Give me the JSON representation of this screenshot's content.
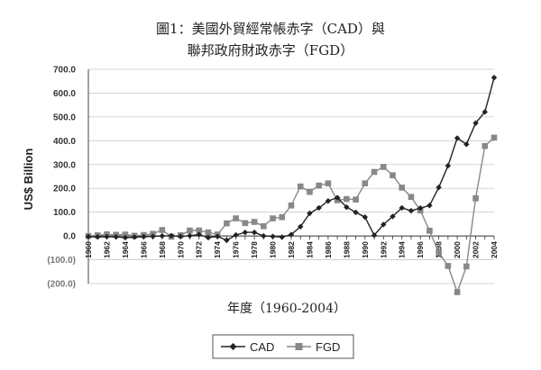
{
  "chart_data": {
    "type": "line",
    "title_line1": "圖1：美國外貿經常帳赤字（CAD）與",
    "title_line2": "聯邦政府財政赤字（FGD）",
    "xlabel": "年度（1960-2004）",
    "ylabel": "US$ Billion",
    "ylim": [
      -200,
      700
    ],
    "ytick_labels": [
      "700.0",
      "600.0",
      "500.0",
      "400.0",
      "300.0",
      "200.0",
      "100.0",
      "0.0",
      "(100.0)",
      "(200.0)"
    ],
    "ytick_values": [
      700,
      600,
      500,
      400,
      300,
      200,
      100,
      0,
      -100,
      -200
    ],
    "xtick_labels": [
      "1960",
      "1962",
      "1964",
      "1966",
      "1968",
      "1970",
      "1972",
      "1974",
      "1976",
      "1978",
      "1980",
      "1982",
      "1984",
      "1986",
      "1988",
      "1990",
      "1992",
      "1994",
      "1996",
      "1998",
      "2000",
      "2002",
      "2004"
    ],
    "x": [
      1960,
      1961,
      1962,
      1963,
      1964,
      1965,
      1966,
      1967,
      1968,
      1969,
      1970,
      1971,
      1972,
      1973,
      1974,
      1975,
      1976,
      1977,
      1978,
      1979,
      1980,
      1981,
      1982,
      1983,
      1984,
      1985,
      1986,
      1987,
      1988,
      1989,
      1990,
      1991,
      1992,
      1993,
      1994,
      1995,
      1996,
      1997,
      1998,
      1999,
      2000,
      2001,
      2002,
      2003,
      2004
    ],
    "grid": true,
    "legend_position": "bottom",
    "series": [
      {
        "name": "CAD",
        "color": "#222222",
        "marker": "diamond",
        "values": [
          -3,
          -4,
          -3,
          -4,
          -7,
          -5,
          -3,
          -2,
          0,
          1,
          -2,
          1,
          6,
          -7,
          -2,
          -18,
          4,
          15,
          15,
          0,
          -2,
          -5,
          6,
          39,
          95,
          118,
          147,
          161,
          121,
          99,
          79,
          3,
          48,
          82,
          118,
          106,
          117,
          128,
          204,
          295,
          411,
          385,
          474,
          521,
          665
        ]
      },
      {
        "name": "FGD",
        "color": "#888888",
        "marker": "square",
        "values": [
          0,
          3,
          7,
          5,
          6,
          1,
          4,
          9,
          25,
          -3,
          3,
          23,
          23,
          15,
          6,
          53,
          74,
          54,
          59,
          41,
          74,
          79,
          128,
          208,
          185,
          212,
          221,
          150,
          155,
          153,
          221,
          269,
          290,
          255,
          203,
          164,
          107,
          22,
          -69,
          -126,
          -236,
          -128,
          158,
          378,
          413
        ]
      }
    ]
  }
}
